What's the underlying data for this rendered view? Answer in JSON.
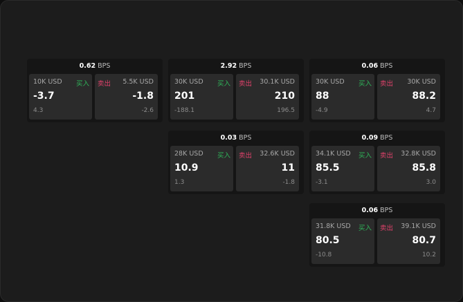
{
  "labels": {
    "buy": "买入",
    "sell": "卖出",
    "unit": "BPS"
  },
  "colors": {
    "buy": "#2fb65a",
    "sell": "#e0426b"
  },
  "widgets": [
    {
      "spread": "0.62",
      "buy": {
        "size": "10K USD",
        "price": "-3.7",
        "change": "4.3"
      },
      "sell": {
        "size": "5.5K USD",
        "price": "-1.8",
        "change": "-2.6"
      }
    },
    {
      "spread": "2.92",
      "buy": {
        "size": "30K USD",
        "price": "201",
        "change": "-188.1"
      },
      "sell": {
        "size": "30.1K USD",
        "price": "210",
        "change": "196.5"
      }
    },
    {
      "spread": "0.06",
      "buy": {
        "size": "30K USD",
        "price": "88",
        "change": "-4.9"
      },
      "sell": {
        "size": "30K USD",
        "price": "88.2",
        "change": "4.7"
      }
    },
    {
      "spread": "0.03",
      "buy": {
        "size": "28K USD",
        "price": "10.9",
        "change": "1.3"
      },
      "sell": {
        "size": "32.6K USD",
        "price": "11",
        "change": "-1.8"
      }
    },
    {
      "spread": "0.09",
      "buy": {
        "size": "34.1K USD",
        "price": "85.5",
        "change": "-3.1"
      },
      "sell": {
        "size": "32.8K USD",
        "price": "85.8",
        "change": "3.0"
      }
    },
    {
      "spread": "0.06",
      "buy": {
        "size": "31.8K USD",
        "price": "80.5",
        "change": "-10.8"
      },
      "sell": {
        "size": "39.1K USD",
        "price": "80.7",
        "change": "10.2"
      }
    }
  ]
}
